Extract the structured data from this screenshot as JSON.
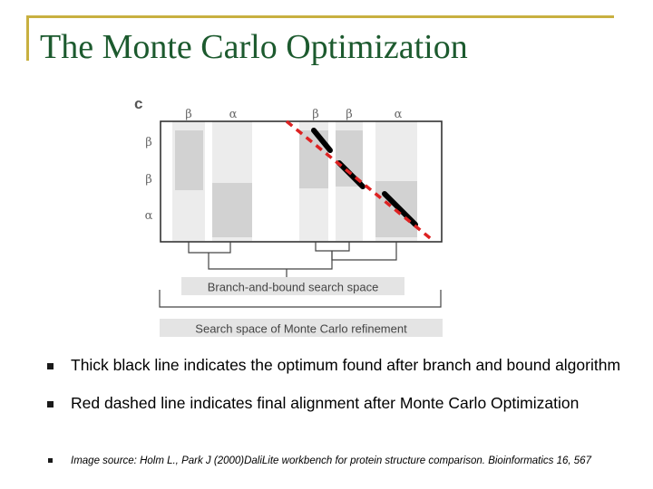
{
  "slide": {
    "title": "The Monte Carlo Optimization"
  },
  "figure": {
    "corner_label": "c",
    "top_labels": [
      "β",
      "α",
      "β",
      "β",
      "α"
    ],
    "side_labels": [
      "β",
      "β",
      "α"
    ],
    "branch_label": "Branch-and-bound search space",
    "monte_carlo_label": "Search space of Monte Carlo refinement",
    "line_colors": {
      "optimum": "#000000",
      "final": "#dd2222"
    }
  },
  "bullets": [
    {
      "text": "Thick black line indicates the optimum found after branch and bound algorithm"
    },
    {
      "text": "Red dashed line indicates final alignment after Monte Carlo Optimization"
    }
  ],
  "source": {
    "text": "Image source: Holm L., Park J (2000)DaliLite workbench for protein structure comparison. Bioinformatics 16, 567"
  }
}
